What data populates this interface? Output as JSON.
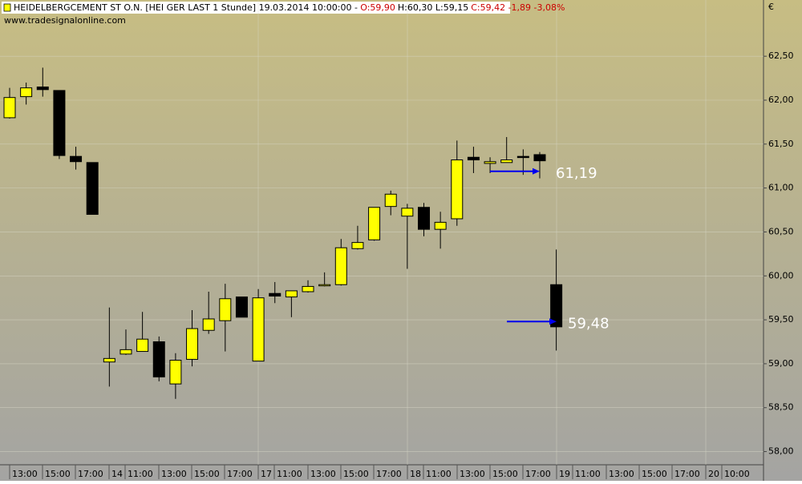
{
  "header": {
    "segments": [
      {
        "text": "HEIDELBERGCEMENT ST O.N. [HEI GER LAST 1 Stunde] 19.03.2014 10:00:00 -",
        "color": "#000000"
      },
      {
        "text": "O:59,90",
        "color": "#cc0000"
      },
      {
        "text": "H:60,30 L:59,15",
        "color": "#000000"
      },
      {
        "text": "C:59,42 -1,89 -3,08%",
        "color": "#cc0000"
      }
    ],
    "source": "www.tradesignalonline.com",
    "currency": "€"
  },
  "chart_data": {
    "type": "candlestick",
    "open": [
      61.8,
      62.04,
      62.15,
      62.11,
      61.36,
      61.29,
      59.02,
      59.11,
      59.14,
      59.25,
      58.77,
      59.05,
      59.38,
      59.49,
      59.76,
      59.03,
      59.8,
      59.76,
      59.82,
      59.89,
      59.9,
      60.31,
      60.41,
      60.79,
      60.68,
      60.78,
      60.53,
      60.65,
      61.35,
      61.28,
      61.29,
      61.36,
      61.38,
      59.9
    ],
    "high": [
      62.14,
      62.2,
      62.37,
      62.11,
      61.47,
      61.29,
      59.64,
      59.39,
      59.59,
      59.31,
      59.12,
      59.61,
      59.82,
      59.91,
      59.76,
      59.85,
      59.93,
      59.83,
      59.95,
      60.04,
      60.42,
      60.57,
      60.78,
      60.97,
      60.82,
      60.83,
      60.73,
      61.54,
      61.47,
      61.35,
      61.58,
      61.44,
      61.41,
      60.3
    ],
    "low": [
      61.79,
      61.95,
      62.04,
      61.33,
      61.21,
      60.7,
      58.74,
      59.1,
      59.14,
      58.8,
      58.6,
      58.97,
      59.34,
      59.14,
      59.53,
      59.03,
      59.69,
      59.53,
      59.81,
      59.88,
      59.89,
      60.3,
      60.4,
      60.69,
      60.08,
      60.45,
      60.31,
      60.57,
      61.17,
      61.17,
      61.29,
      61.15,
      61.11,
      59.15
    ],
    "close": [
      62.03,
      62.14,
      62.12,
      61.37,
      61.3,
      60.7,
      59.06,
      59.16,
      59.28,
      58.85,
      59.04,
      59.4,
      59.51,
      59.74,
      59.53,
      59.75,
      59.77,
      59.83,
      59.88,
      59.9,
      60.32,
      60.38,
      60.78,
      60.93,
      60.77,
      60.53,
      60.61,
      61.32,
      61.32,
      61.3,
      61.32,
      61.35,
      61.31,
      59.42
    ],
    "up_color": "#ffff00",
    "down_color": "#000000",
    "x_tick_labels": [
      "13:00",
      "15:00",
      "17:00",
      "14",
      "11:00",
      "13:00",
      "15:00",
      "17:00",
      "17",
      "11:00",
      "13:00",
      "15:00",
      "17:00",
      "18",
      "11:00",
      "13:00",
      "15:00",
      "17:00",
      "19",
      "11:00",
      "13:00",
      "15:00",
      "17:00",
      "20",
      "10:00"
    ],
    "ylim": [
      57.85,
      63.14
    ],
    "yticks": [
      {
        "value": 58,
        "label": "58,00"
      },
      {
        "value": 58.5,
        "label": "58,50"
      },
      {
        "value": 59,
        "label": "59,00"
      },
      {
        "value": 59.5,
        "label": "59,50"
      },
      {
        "value": 60,
        "label": "60,00"
      },
      {
        "value": 60.5,
        "label": "60,50"
      },
      {
        "value": 61,
        "label": "61,00"
      },
      {
        "value": 61.5,
        "label": "61,50"
      },
      {
        "value": 62,
        "label": "62,00"
      },
      {
        "value": 62.5,
        "label": "62,50"
      }
    ],
    "grid": true,
    "annotations": [
      {
        "value": 61.19,
        "label": "61,19",
        "color": "#0000ee"
      },
      {
        "value": 59.48,
        "label": "59,48",
        "color": "#0000ee"
      }
    ]
  }
}
